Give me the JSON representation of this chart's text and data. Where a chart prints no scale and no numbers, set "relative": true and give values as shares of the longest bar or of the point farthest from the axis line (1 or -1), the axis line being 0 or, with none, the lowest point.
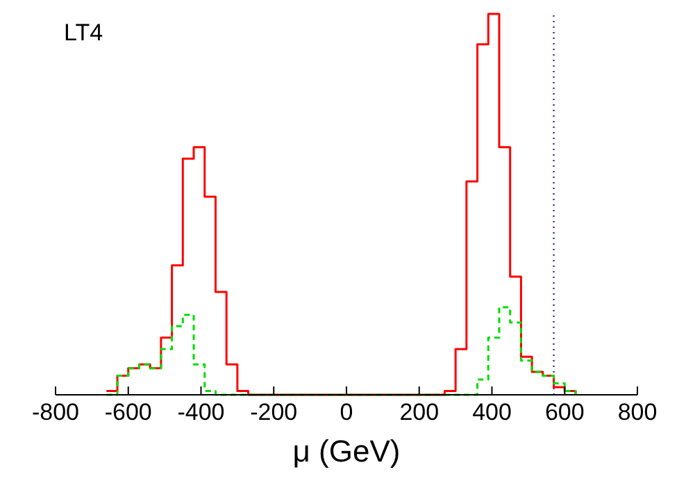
{
  "chart_data": {
    "type": "step",
    "relative": true,
    "xlabel": "μ (GeV)",
    "annotations": [
      "LT4"
    ],
    "x": [
      -660,
      -630,
      -600,
      -570,
      -540,
      -510,
      -480,
      -450,
      -420,
      -390,
      -360,
      -330,
      -300,
      -270,
      -240,
      -210,
      -180,
      -150,
      -120,
      -90,
      -60,
      -30,
      0,
      30,
      60,
      90,
      120,
      150,
      180,
      210,
      240,
      270,
      300,
      330,
      360,
      390,
      420,
      450,
      480,
      510,
      540,
      570,
      600,
      630
    ],
    "series": [
      {
        "color": "#ff0000",
        "line_style": "solid",
        "values": [
          0.01,
          0.05,
          0.07,
          0.08,
          0.07,
          0.15,
          0.34,
          0.62,
          0.65,
          0.52,
          0.27,
          0.08,
          0.01,
          0,
          0,
          0,
          0,
          0,
          0,
          0,
          0,
          0,
          0,
          0,
          0,
          0,
          0,
          0,
          0,
          0,
          0,
          0.01,
          0.12,
          0.56,
          0.92,
          1,
          0.65,
          0.31,
          0.1,
          0.06,
          0.05,
          0.02,
          0.01,
          0
        ]
      },
      {
        "color": "#00dd00",
        "line_style": "dashed",
        "values": [
          0,
          0.05,
          0.07,
          0.08,
          0.07,
          0.12,
          0.18,
          0.21,
          0.08,
          0.01,
          0,
          0,
          0,
          0,
          0,
          0,
          0,
          0,
          0,
          0,
          0,
          0,
          0,
          0,
          0,
          0,
          0,
          0,
          0,
          0,
          0,
          0,
          0,
          0,
          0.04,
          0.15,
          0.23,
          0.19,
          0.09,
          0.06,
          0.05,
          0.03,
          0.01,
          0
        ]
      }
    ],
    "xlim": [
      -800,
      800
    ],
    "xticks": [
      -800,
      -600,
      -400,
      -200,
      0,
      200,
      400,
      600,
      800
    ],
    "ref_lines": [
      {
        "axis": "x",
        "value": 570,
        "color": "#3030a0",
        "line_style": "dotted"
      }
    ]
  }
}
